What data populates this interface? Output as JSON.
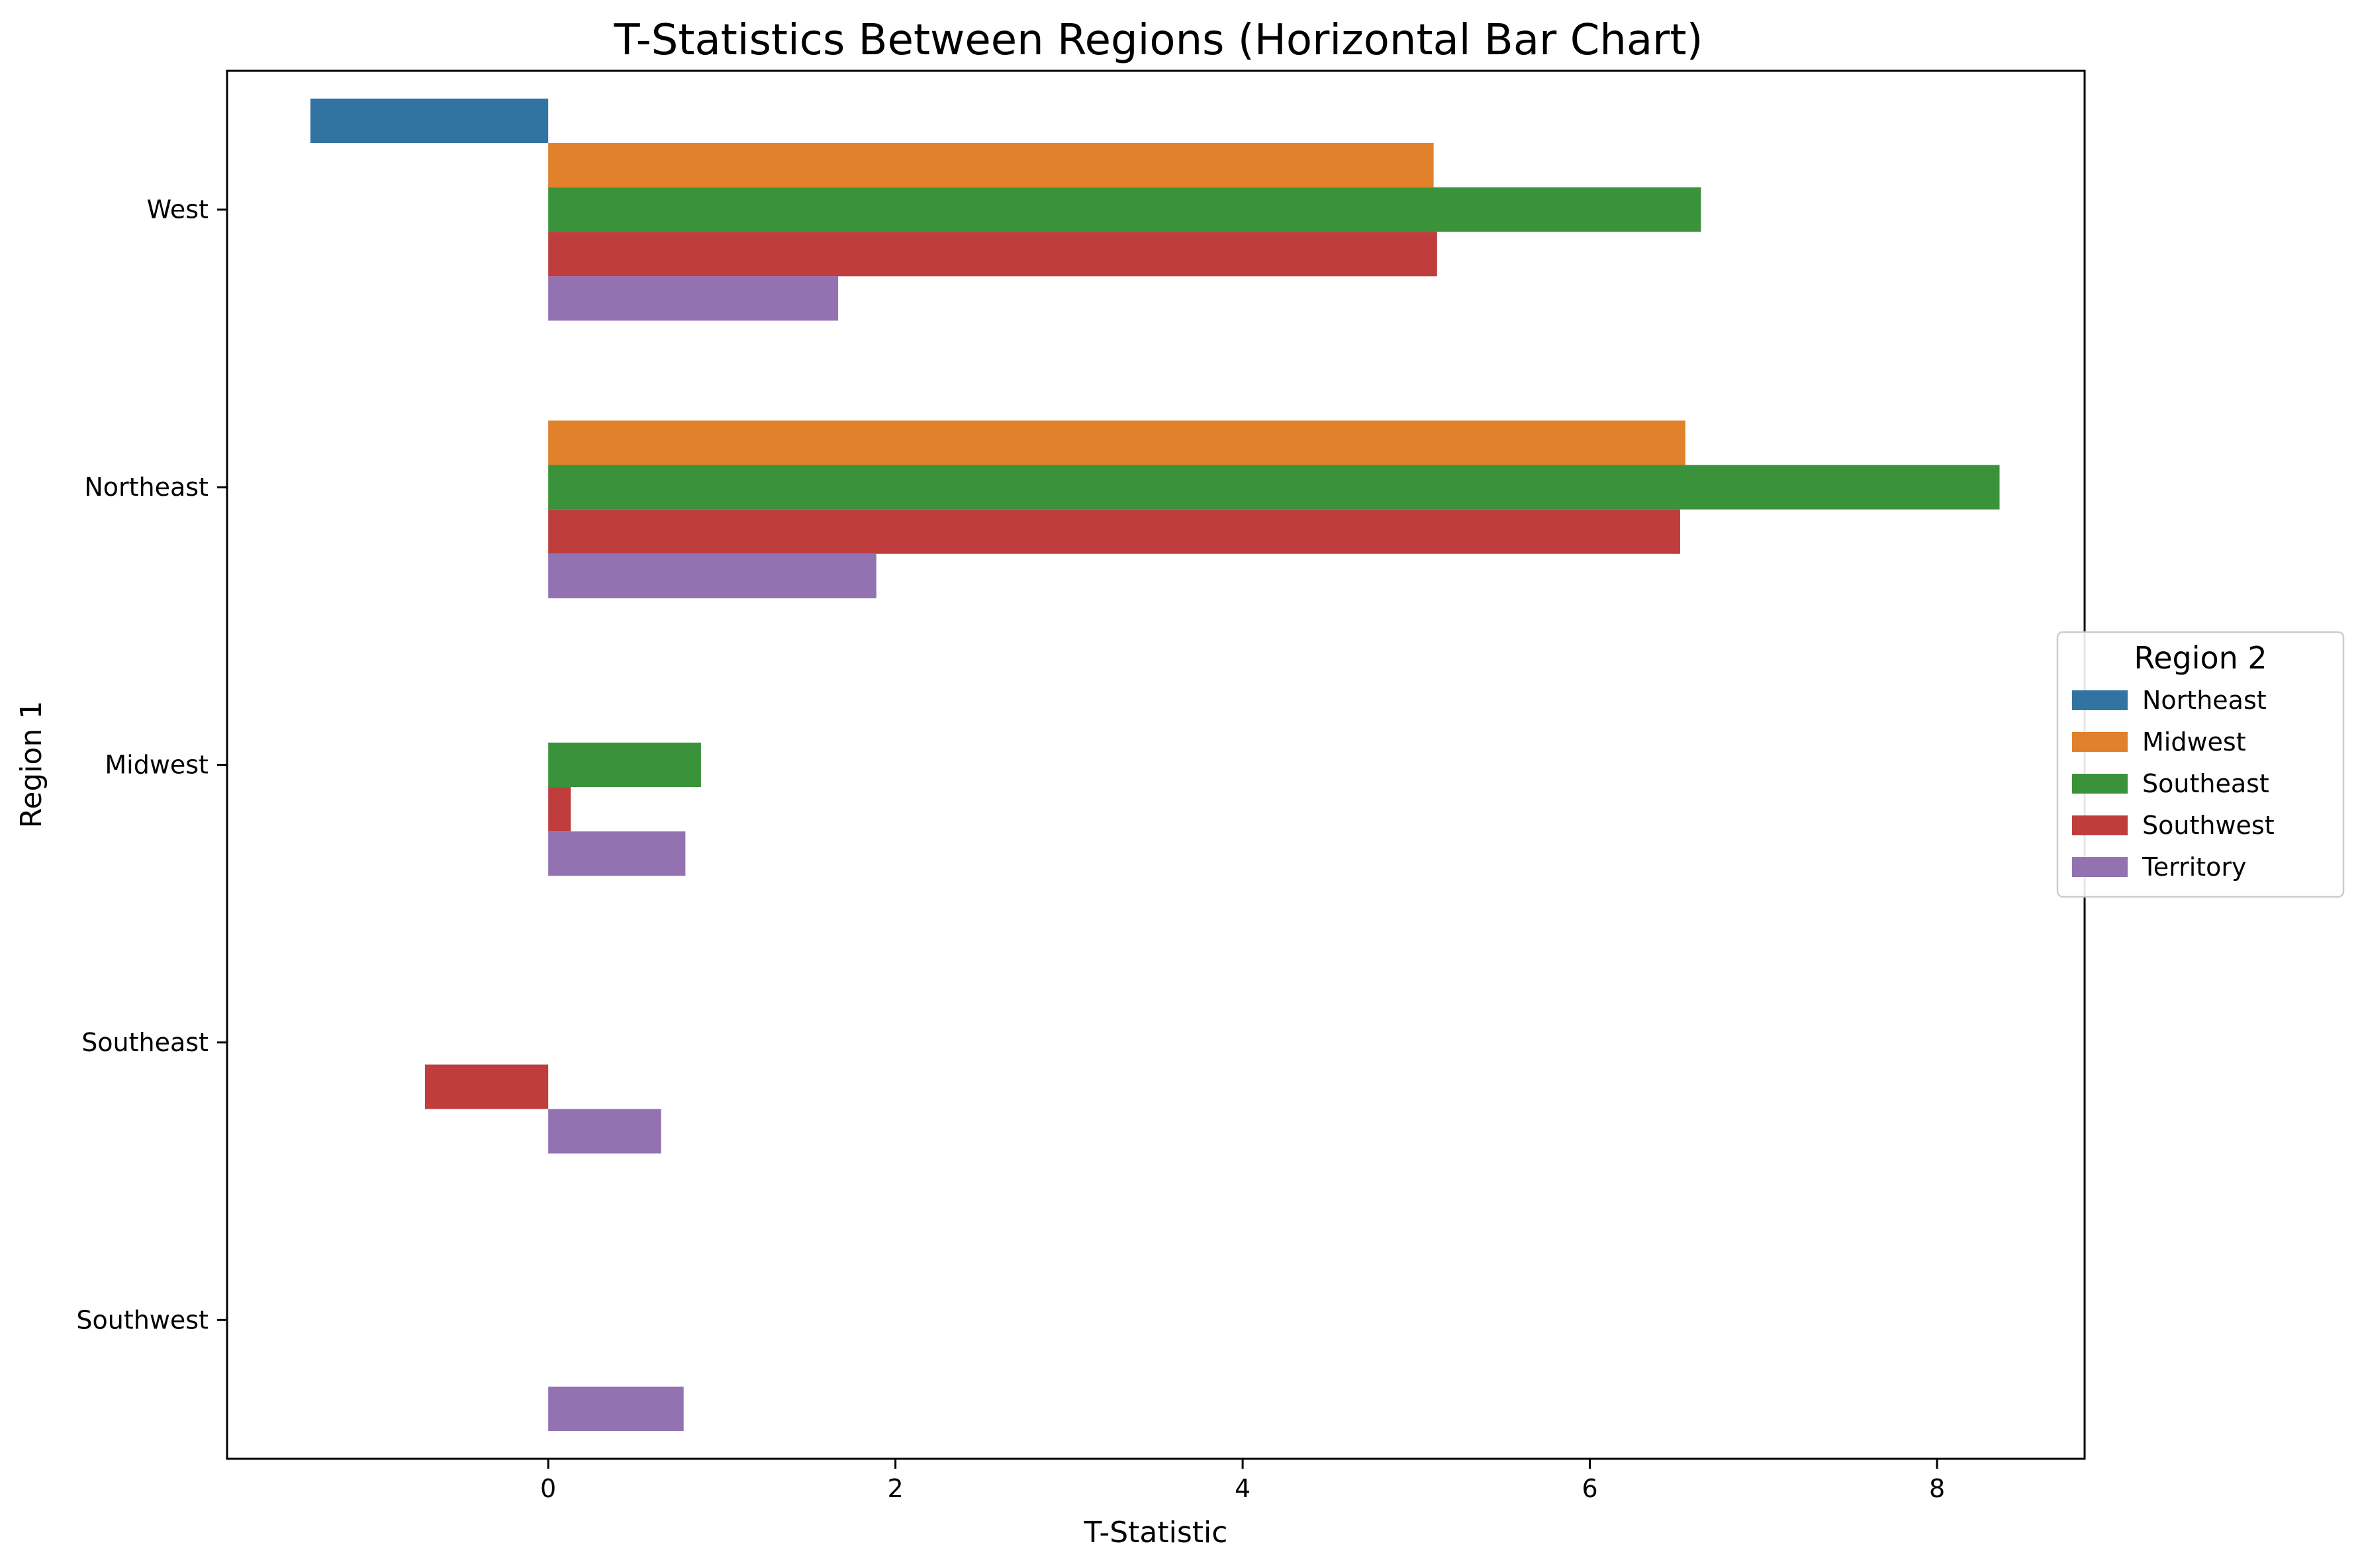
{
  "chart_data": {
    "type": "bar",
    "orientation": "horizontal",
    "title": "T-Statistics Between Regions (Horizontal Bar Chart)",
    "xlabel": "T-Statistic",
    "ylabel": "Region 1",
    "categories": [
      "West",
      "Northeast",
      "Midwest",
      "Southeast",
      "Southwest"
    ],
    "xlim": [
      -1.85,
      8.85
    ],
    "xticks": [
      0,
      2,
      4,
      6,
      8
    ],
    "grid": false,
    "legend": {
      "title": "Region 2",
      "placement": "center-right-outside"
    },
    "series": [
      {
        "name": "Northeast",
        "color": "#3274a1",
        "values": [
          -1.37,
          null,
          null,
          null,
          null
        ]
      },
      {
        "name": "Midwest",
        "color": "#e1812c",
        "values": [
          5.1,
          6.55,
          null,
          null,
          null
        ]
      },
      {
        "name": "Southeast",
        "color": "#3a923a",
        "values": [
          6.64,
          8.36,
          0.88,
          null,
          null
        ]
      },
      {
        "name": "Southwest",
        "color": "#c03d3e",
        "values": [
          5.12,
          6.52,
          0.13,
          -0.71,
          null
        ]
      },
      {
        "name": "Territory",
        "color": "#9372b2",
        "values": [
          1.67,
          1.89,
          0.79,
          0.65,
          0.78
        ]
      }
    ]
  }
}
